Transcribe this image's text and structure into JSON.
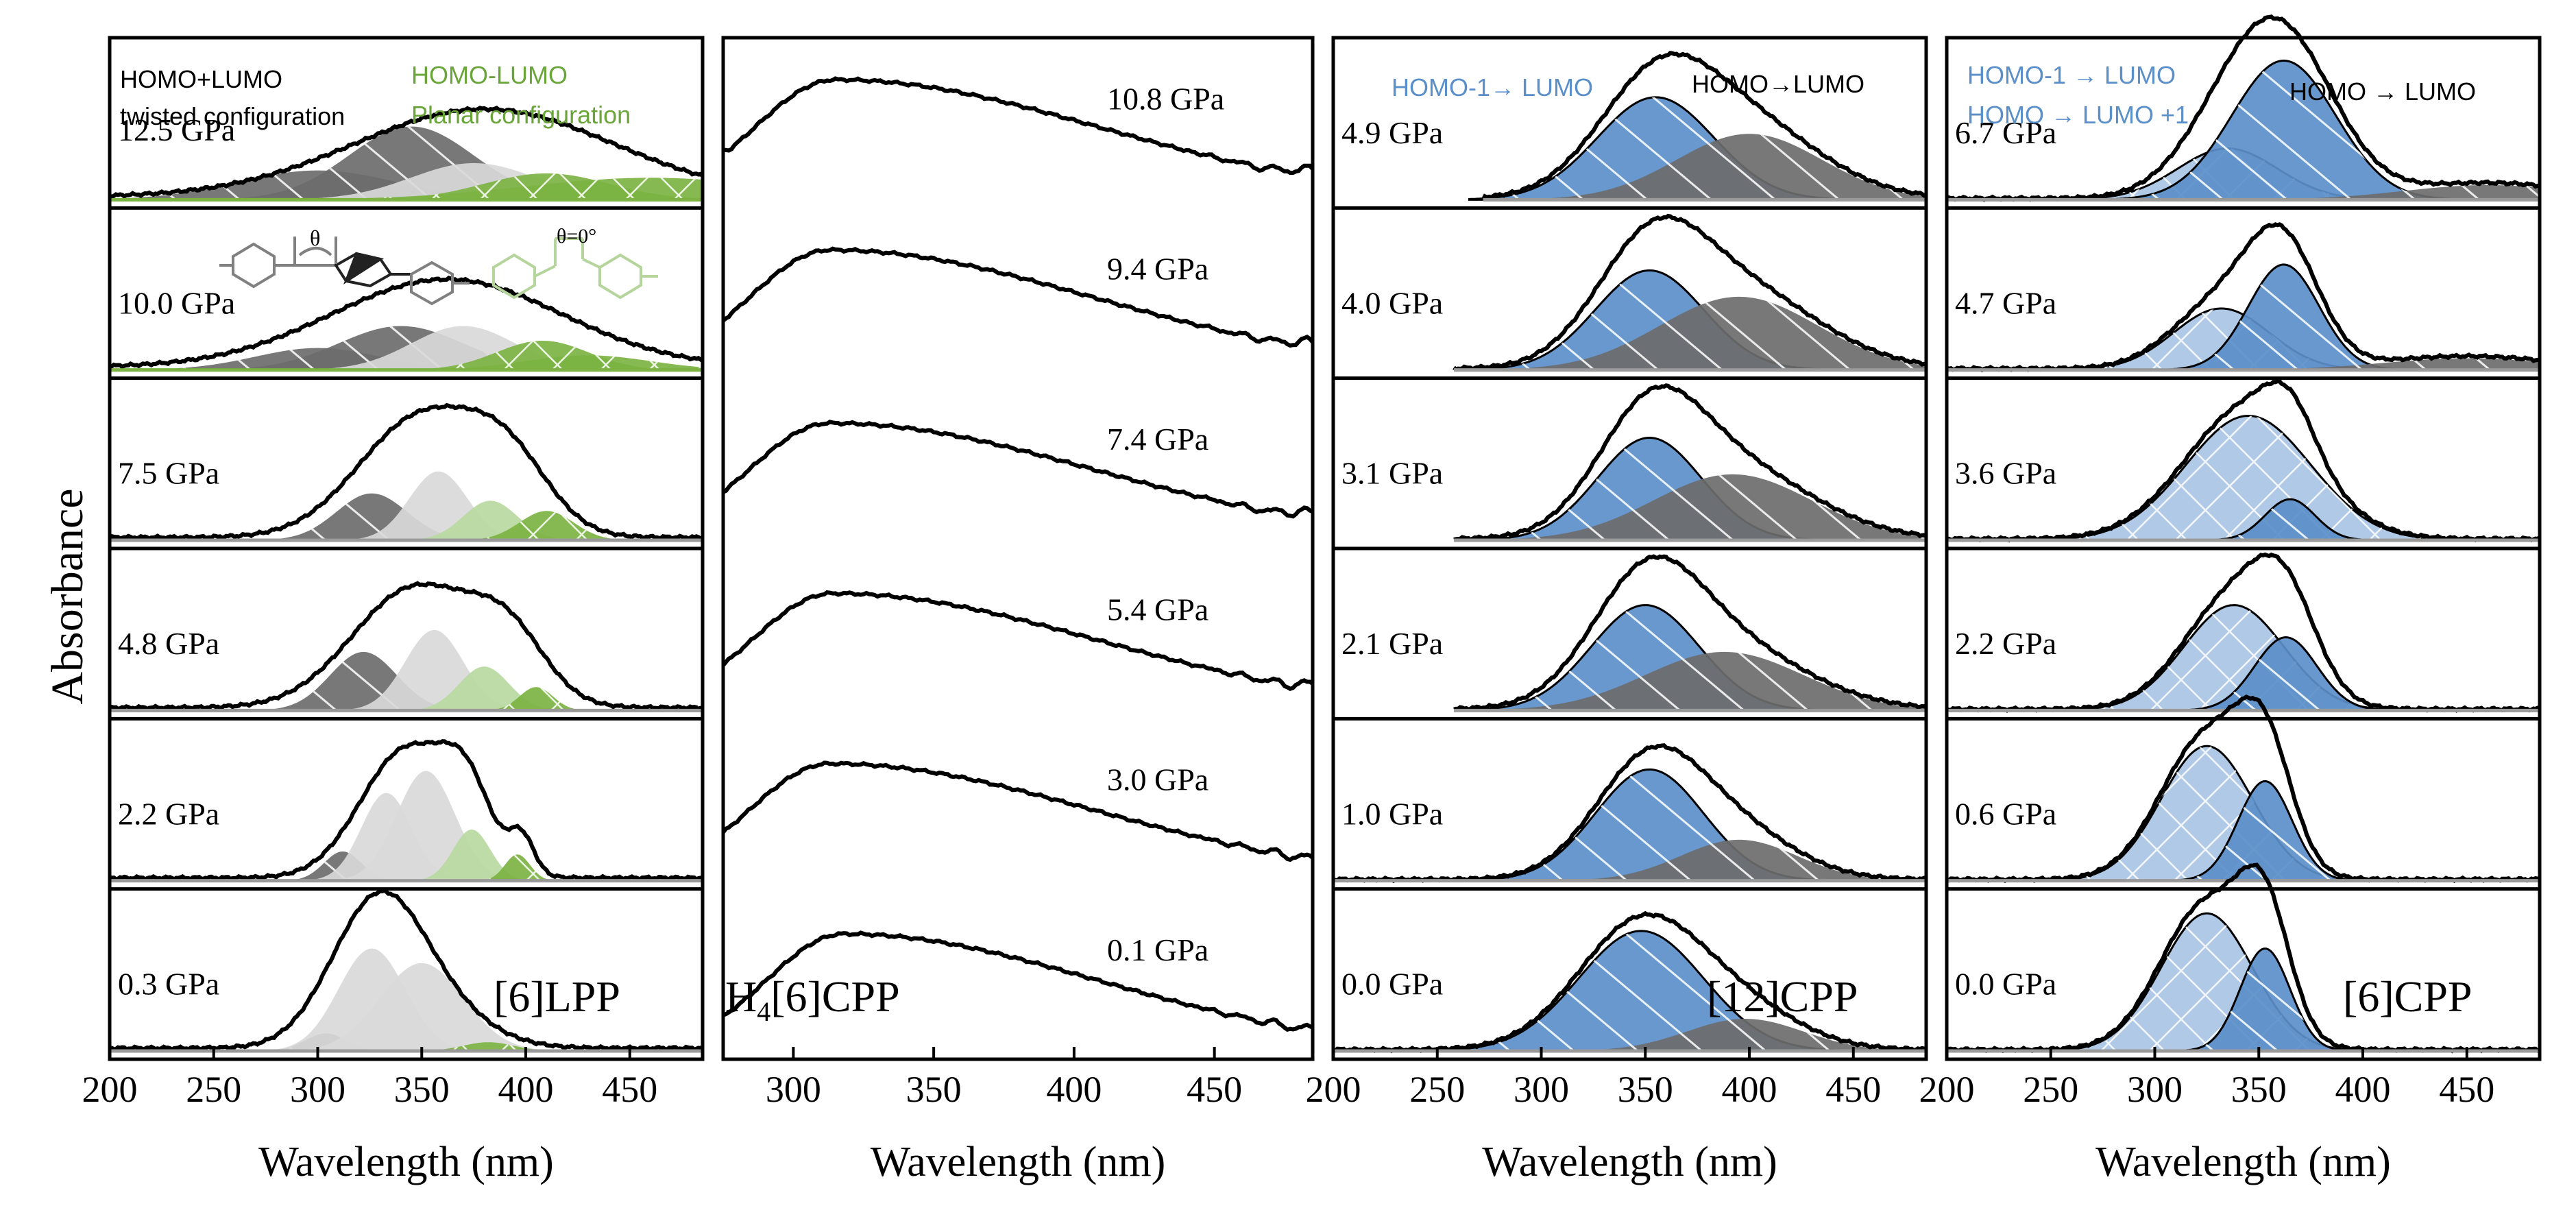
{
  "figure": {
    "y_axis_label": "Absorbance",
    "x_axis_label": "Wavelength (nm)"
  },
  "colors": {
    "gray_dark": "#6d6d6d",
    "gray_mid": "#9a9a9a",
    "gray_light": "#d9d9d9",
    "green": "#7cb342",
    "green_light": "#b9d9a0",
    "blue": "#5b8fc9",
    "blue_light": "#a9c4e4",
    "line": "#000000"
  },
  "chart_data": [
    {
      "type": "line",
      "title": "[6]LPP",
      "xlabel": "Wavelength (nm)",
      "ylabel": "Absorbance",
      "xlim": [
        200,
        485
      ],
      "xticks": [
        200,
        250,
        300,
        350,
        400,
        450
      ],
      "legend": [
        {
          "text": "HOMO+LUMO",
          "style": "normal",
          "color": "#000000"
        },
        {
          "text": "twisted configuration",
          "style": "bold-italic-first",
          "color": "#000000"
        },
        {
          "text": "HOMO-LUMO",
          "style": "normal",
          "color": "#6aa53a"
        },
        {
          "text": "Planar configuration",
          "style": "bold-italic-first",
          "color": "#6aa53a"
        }
      ],
      "inset_label": "θ",
      "inset_label_planar": "θ=0°",
      "series": [
        {
          "name": "12.5 GPa",
          "xmin": 200,
          "xmax": 485,
          "baseline": 0.02,
          "envelope": [
            {
              "c": 380,
              "w": 62,
              "a": 0.6
            }
          ],
          "bands": [
            {
              "c": 300,
              "w": 38,
              "a": 0.2,
              "kind": "gray_dark"
            },
            {
              "c": 345,
              "w": 30,
              "a": 0.5,
              "kind": "gray_dark"
            },
            {
              "c": 375,
              "w": 30,
              "a": 0.25,
              "kind": "gray_light"
            },
            {
              "c": 410,
              "w": 30,
              "a": 0.18,
              "kind": "green"
            },
            {
              "c": 460,
              "w": 60,
              "a": 0.15,
              "kind": "green"
            }
          ]
        },
        {
          "name": "10.0 GPa",
          "xmin": 200,
          "xmax": 485,
          "baseline": 0.02,
          "envelope": [
            {
              "c": 362,
              "w": 55,
              "a": 0.6
            }
          ],
          "bands": [
            {
              "c": 300,
              "w": 30,
              "a": 0.15,
              "kind": "gray_dark"
            },
            {
              "c": 340,
              "w": 30,
              "a": 0.3,
              "kind": "gray_dark"
            },
            {
              "c": 370,
              "w": 25,
              "a": 0.3,
              "kind": "gray_light"
            },
            {
              "c": 408,
              "w": 22,
              "a": 0.2,
              "kind": "green"
            },
            {
              "c": 430,
              "w": 30,
              "a": 0.1,
              "kind": "green"
            }
          ]
        },
        {
          "name": "7.5 GPa",
          "xmin": 200,
          "xmax": 485,
          "baseline": 0.02,
          "envelope": [
            {
              "c": 350,
              "w": 30,
              "a": 0.82
            },
            {
              "c": 392,
              "w": 20,
              "a": 0.42
            }
          ],
          "bands": [
            {
              "c": 326,
              "w": 17,
              "a": 0.32,
              "kind": "gray_dark"
            },
            {
              "c": 358,
              "w": 14,
              "a": 0.47,
              "kind": "gray_light"
            },
            {
              "c": 383,
              "w": 13,
              "a": 0.27,
              "kind": "green_light"
            },
            {
              "c": 410,
              "w": 13,
              "a": 0.2,
              "kind": "green"
            }
          ]
        },
        {
          "name": "4.8 GPa",
          "xmin": 200,
          "xmax": 485,
          "baseline": 0.02,
          "envelope": [
            {
              "c": 347,
              "w": 30,
              "a": 0.82
            },
            {
              "c": 392,
              "w": 18,
              "a": 0.4
            }
          ],
          "bands": [
            {
              "c": 322,
              "w": 16,
              "a": 0.4,
              "kind": "gray_dark"
            },
            {
              "c": 356,
              "w": 14,
              "a": 0.55,
              "kind": "gray_light"
            },
            {
              "c": 380,
              "w": 12,
              "a": 0.3,
              "kind": "green_light"
            },
            {
              "c": 405,
              "w": 8,
              "a": 0.16,
              "kind": "green"
            }
          ]
        },
        {
          "name": "2.2 GPa",
          "xmin": 200,
          "xmax": 485,
          "baseline": 0.02,
          "envelope": [
            {
              "c": 343,
              "w": 22,
              "a": 0.88
            },
            {
              "c": 372,
              "w": 12,
              "a": 0.45
            },
            {
              "c": 398,
              "w": 6,
              "a": 0.25
            }
          ],
          "bands": [
            {
              "c": 312,
              "w": 9,
              "a": 0.2,
              "kind": "gray_dark"
            },
            {
              "c": 333,
              "w": 12,
              "a": 0.6,
              "kind": "gray_light"
            },
            {
              "c": 352,
              "w": 14,
              "a": 0.75,
              "kind": "gray_light"
            },
            {
              "c": 374,
              "w": 9,
              "a": 0.35,
              "kind": "green_light"
            },
            {
              "c": 396,
              "w": 6,
              "a": 0.18,
              "kind": "green"
            }
          ]
        },
        {
          "name": "0.3 GPa",
          "xmin": 200,
          "xmax": 485,
          "baseline": 0.02,
          "envelope": [
            {
              "c": 328,
              "w": 22,
              "a": 0.92
            },
            {
              "c": 355,
              "w": 25,
              "a": 0.25
            }
          ],
          "bands": [
            {
              "c": 304,
              "w": 10,
              "a": 0.12,
              "kind": "gray_dark"
            },
            {
              "c": 326,
              "w": 16,
              "a": 0.7,
              "kind": "gray_light"
            },
            {
              "c": 350,
              "w": 20,
              "a": 0.6,
              "kind": "gray_light"
            },
            {
              "c": 382,
              "w": 12,
              "a": 0.06,
              "kind": "green"
            }
          ]
        }
      ]
    },
    {
      "type": "line",
      "title": "H4[6]CPP",
      "title_parts": {
        "main": "H",
        "sub": "4",
        "rest": "[6]CPP"
      },
      "xlabel": "Wavelength (nm)",
      "xlim": [
        275,
        485
      ],
      "xticks": [
        300,
        350,
        400,
        450
      ],
      "series": [
        {
          "name": "10.8 GPa",
          "peak": 315,
          "width": 52,
          "amp": 0.82,
          "tail": 0.32
        },
        {
          "name": "9.4 GPa",
          "peak": 313,
          "width": 52,
          "amp": 0.82,
          "tail": 0.3
        },
        {
          "name": "7.4 GPa",
          "peak": 313,
          "width": 52,
          "amp": 0.8,
          "tail": 0.3
        },
        {
          "name": "5.4 GPa",
          "peak": 314,
          "width": 52,
          "amp": 0.8,
          "tail": 0.28
        },
        {
          "name": "3.0 GPa",
          "peak": 313,
          "width": 52,
          "amp": 0.8,
          "tail": 0.22
        },
        {
          "name": "0.1 GPa",
          "peak": 318,
          "width": 50,
          "amp": 0.8,
          "tail": 0.18
        }
      ]
    },
    {
      "type": "line",
      "title": "[12]CPP",
      "xlabel": "Wavelength (nm)",
      "xlim": [
        200,
        485
      ],
      "xticks": [
        200,
        250,
        300,
        350,
        400,
        450
      ],
      "legend": [
        {
          "text": "HOMO-1→ LUMO",
          "color": "#5b8fc9"
        },
        {
          "text": "HOMO→LUMO",
          "color": "#000000"
        }
      ],
      "series": [
        {
          "name": "4.9 GPa",
          "xmin": 272,
          "bands": [
            {
              "c": 355,
              "w": 28,
              "a": 0.7,
              "kind": "blue"
            },
            {
              "c": 400,
              "w": 35,
              "a": 0.45,
              "kind": "gray"
            }
          ]
        },
        {
          "name": "4.0 GPa",
          "xmin": 258,
          "bands": [
            {
              "c": 352,
              "w": 26,
              "a": 0.68,
              "kind": "blue"
            },
            {
              "c": 395,
              "w": 38,
              "a": 0.5,
              "kind": "gray"
            }
          ]
        },
        {
          "name": "3.1 GPa",
          "xmin": 258,
          "bands": [
            {
              "c": 352,
              "w": 25,
              "a": 0.7,
              "kind": "blue"
            },
            {
              "c": 392,
              "w": 38,
              "a": 0.45,
              "kind": "gray"
            }
          ]
        },
        {
          "name": "2.1 GPa",
          "xmin": 258,
          "bands": [
            {
              "c": 350,
              "w": 26,
              "a": 0.72,
              "kind": "blue"
            },
            {
              "c": 388,
              "w": 38,
              "a": 0.4,
              "kind": "gray"
            }
          ]
        },
        {
          "name": "1.0 GPa",
          "xmin": 200,
          "bands": [
            {
              "c": 352,
              "w": 26,
              "a": 0.76,
              "kind": "blue"
            },
            {
              "c": 395,
              "w": 28,
              "a": 0.28,
              "kind": "gray"
            }
          ]
        },
        {
          "name": "0.0 GPa",
          "xmin": 200,
          "bands": [
            {
              "c": 348,
              "w": 30,
              "a": 0.82,
              "kind": "blue"
            },
            {
              "c": 398,
              "w": 28,
              "a": 0.22,
              "kind": "gray"
            }
          ]
        }
      ]
    },
    {
      "type": "line",
      "title": "[6]CPP",
      "xlabel": "Wavelength (nm)",
      "xlim": [
        200,
        485
      ],
      "xticks": [
        200,
        250,
        300,
        350,
        400,
        450
      ],
      "legend": [
        {
          "text": "HOMO-1 → LUMO",
          "color": "#5b8fc9"
        },
        {
          "text": "HOMO → LUMO +1",
          "color": "#5b8fc9"
        },
        {
          "text": "HOMO → LUMO",
          "color": "#000000"
        }
      ],
      "series": [
        {
          "name": "6.7 GPa",
          "bands": [
            {
              "c": 335,
              "w": 24,
              "a": 0.35,
              "kind": "blue_light"
            },
            {
              "c": 362,
              "w": 25,
              "a": 0.95,
              "kind": "blue"
            },
            {
              "c": 460,
              "w": 40,
              "a": 0.1,
              "kind": "gray"
            }
          ]
        },
        {
          "name": "4.7 GPa",
          "bands": [
            {
              "c": 332,
              "w": 23,
              "a": 0.42,
              "kind": "blue_light"
            },
            {
              "c": 362,
              "w": 17,
              "a": 0.72,
              "kind": "blue"
            },
            {
              "c": 450,
              "w": 40,
              "a": 0.08,
              "kind": "gray"
            }
          ]
        },
        {
          "name": "3.6 GPa",
          "bands": [
            {
              "c": 345,
              "w": 30,
              "a": 0.85,
              "kind": "blue_light"
            },
            {
              "c": 365,
              "w": 12,
              "a": 0.28,
              "kind": "blue"
            }
          ]
        },
        {
          "name": "2.2 GPa",
          "bands": [
            {
              "c": 338,
              "w": 24,
              "a": 0.72,
              "kind": "blue_light"
            },
            {
              "c": 363,
              "w": 15,
              "a": 0.5,
              "kind": "blue"
            }
          ]
        },
        {
          "name": "0.6 GPa",
          "bands": [
            {
              "c": 325,
              "w": 22,
              "a": 0.92,
              "kind": "blue_light"
            },
            {
              "c": 353,
              "w": 13,
              "a": 0.68,
              "kind": "blue"
            }
          ]
        },
        {
          "name": "0.0 GPa",
          "bands": [
            {
              "c": 325,
              "w": 22,
              "a": 0.94,
              "kind": "blue_light"
            },
            {
              "c": 353,
              "w": 12,
              "a": 0.7,
              "kind": "blue"
            }
          ]
        }
      ]
    }
  ]
}
